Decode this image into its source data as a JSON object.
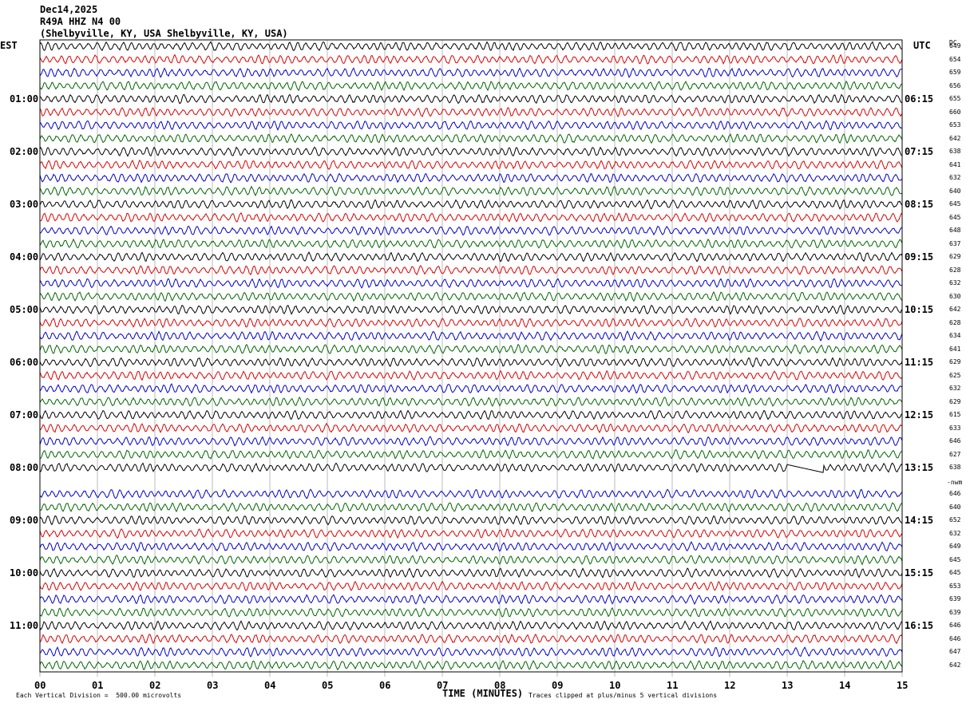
{
  "header": {
    "date": "Dec14,2025",
    "station": "R49A HHZ N4 00",
    "location": "(Shelbyville, KY, USA Shelbyville, KY, USA)"
  },
  "left_tz": "EST",
  "right_tz": "UTC",
  "dc_header": "DC",
  "nwm_label": "-nwm",
  "trace_colors": [
    "#000000",
    "#dd0000",
    "#0000cc",
    "#006600"
  ],
  "chart_data": {
    "type": "line",
    "title": "Dec14,2025 R49A HHZ N4 00 (Shelbyville, KY, USA Shelbyville, KY, USA)",
    "xlabel": "TIME (MINUTES)",
    "xlim": [
      0,
      15
    ],
    "x_ticks": [
      "00",
      "01",
      "02",
      "03",
      "04",
      "05",
      "06",
      "07",
      "08",
      "09",
      "10",
      "11",
      "12",
      "13",
      "14",
      "15"
    ],
    "left_hour_labels": [
      "01:00",
      "02:00",
      "03:00",
      "04:00",
      "05:00",
      "06:00",
      "07:00",
      "08:00",
      "09:00",
      "10:00",
      "11:00"
    ],
    "right_hour_labels": [
      "06:15",
      "07:15",
      "08:15",
      "09:15",
      "10:15",
      "11:15",
      "12:15",
      "13:15",
      "14:15",
      "15:15",
      "16:15"
    ],
    "dc_offsets": [
      649,
      654,
      659,
      656,
      655,
      660,
      653,
      642,
      638,
      641,
      632,
      640,
      645,
      645,
      648,
      637,
      629,
      628,
      632,
      630,
      642,
      628,
      634,
      641,
      629,
      625,
      632,
      629,
      615,
      633,
      646,
      627,
      638,
      null,
      646,
      640,
      652,
      632,
      649,
      645,
      645,
      653,
      639,
      639,
      646,
      646,
      647,
      642
    ],
    "vertical_division_note": "Each Vertical Division =  500.00 microvolts",
    "clip_note": "Traces clipped at plus/minus 5 vertical divisions",
    "grid": true
  }
}
